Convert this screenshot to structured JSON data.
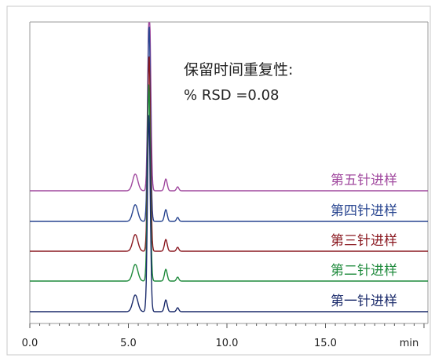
{
  "chart_data": {
    "type": "line",
    "xlabel": "min",
    "xlim": [
      0,
      20.2
    ],
    "x_ticks": [
      "0.0",
      "5.0",
      "10.0",
      "15.0"
    ],
    "annotation": {
      "line1": "保留时间重复性:",
      "line2": "% RSD =0.08"
    },
    "peaks": [
      {
        "rt": 5.35,
        "height": 0.085,
        "width": 0.13
      },
      {
        "rt": 6.05,
        "height": 1.0,
        "width": 0.07
      },
      {
        "rt": 6.9,
        "height": 0.06,
        "width": 0.07
      },
      {
        "rt": 7.5,
        "height": 0.02,
        "width": 0.06
      }
    ],
    "series": [
      {
        "name": "第五针进样",
        "color": "#a0489e",
        "main_peak_rt": 6.06
      },
      {
        "name": "第四针进样",
        "color": "#284590",
        "main_peak_rt": 6.05
      },
      {
        "name": "第三针进样",
        "color": "#8a1820",
        "main_peak_rt": 6.05
      },
      {
        "name": "第二针进样",
        "color": "#1f8a3c",
        "main_peak_rt": 6.04
      },
      {
        "name": "第一针进样",
        "color": "#1a2a6a",
        "main_peak_rt": 6.04
      }
    ]
  },
  "colors": {
    "frame": "#9a9a9a",
    "tick": "#555555",
    "text": "#222222"
  }
}
